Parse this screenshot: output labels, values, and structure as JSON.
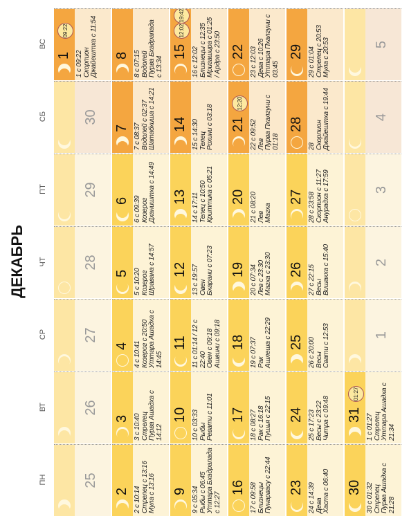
{
  "title": "ДЕКАБРЬ",
  "weekdays": [
    "ПН",
    "ВТ",
    "СР",
    "ЧТ",
    "ПТ",
    "СБ",
    "ВС"
  ],
  "weeks": [
    [
      {
        "day": 25
      },
      {
        "day": 26
      },
      {
        "day": 27
      },
      {
        "day": 28
      },
      {
        "day": 29
      },
      {
        "day": 30
      },
      {
        "day": 1,
        "badges": [
          "09:22"
        ],
        "lines": [
          "1 с 09:22",
          "Скорпион",
          "Джайештха с 11:54"
        ]
      }
    ],
    [
      {
        "day": 2,
        "lines": [
          "2 с 10:14",
          "Стрелец с 13:16",
          "Мула с 13:16"
        ]
      },
      {
        "day": 3,
        "lines": [
          "3 с 10:40",
          "Стрелец",
          "Пурва Ашадха с",
          "14:12"
        ]
      },
      {
        "day": 4,
        "lines": [
          "4 с 10:41",
          "Козерог с 20:50",
          "Уттара Ашадха с",
          "14:45"
        ]
      },
      {
        "day": 5,
        "lines": [
          "5 с 10:20",
          "Козерог",
          "Шравана с 14:57"
        ]
      },
      {
        "day": 6,
        "lines": [
          "6 с 09:39",
          "Козерог",
          "Дхаништха с 14:49"
        ]
      },
      {
        "day": 7,
        "lines": [
          "7 с 08:37",
          "Водолей с 02:37",
          "Шатабхиша с 14:21"
        ]
      },
      {
        "day": 8,
        "lines": [
          "8 с 07:15",
          "Водолей",
          "Пурва Бхадрапада",
          "с 13:34"
        ]
      }
    ],
    [
      {
        "day": 9,
        "lines": [
          "9 с 05:34",
          "Рыбы с 06:45",
          "Уттара Бхадрапада",
          "с 12:27"
        ]
      },
      {
        "day": 10,
        "lines": [
          "10 с 03:33",
          "Рыбы",
          "Ревати с 11:01"
        ]
      },
      {
        "day": 11,
        "lines": [
          "11 с 01:14 / 12 с",
          "22:40",
          "Овен с 09:18",
          "Ашвини с 09:18"
        ]
      },
      {
        "day": 12,
        "lines": [
          "13 с 19:57",
          "Овен",
          "Бхарани с 07:23"
        ]
      },
      {
        "day": 13,
        "lines": [
          "14 с 17:11",
          "Телец с 10:50",
          "Криттика с 05:21"
        ]
      },
      {
        "day": 14,
        "lines": [
          "15 с 14:30",
          "Телец",
          "Рохини с 03:18"
        ]
      },
      {
        "day": 15,
        "badges": [
          "12:02",
          "19:42"
        ],
        "lines": [
          "16 с 12:02",
          "Близнецы с 12:35",
          "Мригашира с 01:25",
          "/ Ардра с 23:50"
        ]
      }
    ],
    [
      {
        "day": 16,
        "lines": [
          "17 с 09:58",
          "Близнецы",
          "Пунарвасу с 22:44"
        ]
      },
      {
        "day": 17,
        "lines": [
          "18 с 08:27",
          "Рак с 16:18",
          "Пушья с 22:15"
        ]
      },
      {
        "day": 18,
        "lines": [
          "19 с 07:37",
          "Рак",
          "Ашлеша с 22:29"
        ]
      },
      {
        "day": 19,
        "lines": [
          "20 с 07:34",
          "Лев с 23:30",
          "Магха с 23:30"
        ]
      },
      {
        "day": 20,
        "lines": [
          "21 с 08:20",
          "Лев",
          "Магха"
        ]
      },
      {
        "day": 21,
        "badges": [
          "12:20"
        ],
        "lines": [
          "22 с 09:52",
          "Лев",
          "Пурва Пхалгуни с",
          "01:18"
        ]
      },
      {
        "day": 22,
        "lines": [
          "23 с 12:03",
          "Дева с 10:26",
          "Уттара Пхалгуни с",
          "03:45"
        ]
      }
    ],
    [
      {
        "day": 23,
        "lines": [
          "24 с 14:39",
          "Дева",
          "Хаста с 06:40"
        ]
      },
      {
        "day": 24,
        "lines": [
          "25 с 17:23",
          "Весы с 23:22",
          "Читра с 09:48"
        ]
      },
      {
        "day": 25,
        "lines": [
          "26 с 20:00",
          "Весы",
          "Свати с 12:53"
        ]
      },
      {
        "day": 26,
        "lines": [
          "27 с 22:15",
          "Весы",
          "Вишакха с 15:40"
        ]
      },
      {
        "day": 27,
        "lines": [
          "28 с 23:58",
          "Скорпион с 11:27",
          "Анурадха с 17:59"
        ]
      },
      {
        "day": 28,
        "lines": [
          "28",
          "Скорпион",
          "Джайештха с 19:44"
        ]
      },
      {
        "day": 29,
        "lines": [
          "29 с 01:04",
          "Стрелец с 20:53",
          "Мула с 20:53"
        ]
      }
    ],
    [
      {
        "day": 30,
        "lines": [
          "30 с 01:32",
          "Стрелец",
          "Пурва Ашадха с",
          "21:28"
        ]
      },
      {
        "day": 31,
        "badges": [
          "01:27"
        ],
        "lines": [
          "1 с 01:27",
          "Стрелец",
          "Уттара Ашадха с",
          "21:34"
        ]
      },
      {
        "day": 1
      },
      {
        "day": 2
      },
      {
        "day": 3
      },
      {
        "day": 4
      },
      {
        "day": 5
      }
    ]
  ]
}
